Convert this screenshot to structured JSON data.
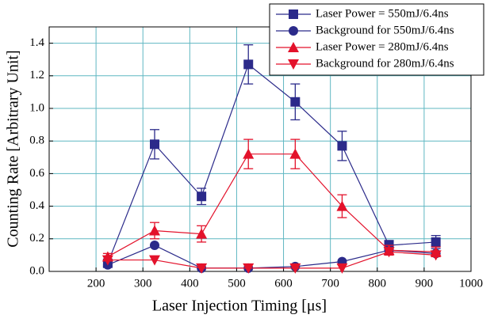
{
  "chart_data": {
    "type": "line",
    "xlabel": "Laser Injection Timing [μs]",
    "ylabel": "Counting Rate [Arbitrary Unit]",
    "x": [
      225,
      325,
      425,
      525,
      625,
      725,
      825,
      925
    ],
    "xlim": [
      100,
      1000
    ],
    "xticks": [
      200,
      300,
      400,
      500,
      600,
      700,
      800,
      900,
      1000
    ],
    "ylim": [
      0,
      1.5
    ],
    "yticks": [
      {
        "value": 0,
        "label": "0.0"
      },
      0.2,
      0.4,
      0.6,
      0.8,
      {
        "value": 1,
        "label": "1.0"
      },
      1.2,
      1.4
    ],
    "grid": true,
    "legend": "top-right",
    "series": [
      {
        "name": "Laser Power = 550mJ/6.4ns",
        "color": "#2b2a8a",
        "marker": "square",
        "values": [
          0.05,
          0.78,
          0.46,
          1.27,
          1.04,
          0.77,
          0.16,
          0.18
        ],
        "errors": [
          0.02,
          0.09,
          0.05,
          0.12,
          0.11,
          0.09,
          0.03,
          0.04
        ]
      },
      {
        "name": "Background for 550mJ/6.4ns",
        "color": "#2b2a8a",
        "marker": "circle",
        "values": [
          0.04,
          0.16,
          0.02,
          0.02,
          0.03,
          0.06,
          0.13,
          0.11
        ]
      },
      {
        "name": "Laser Power = 280mJ/6.4ns",
        "color": "#e3122b",
        "marker": "triangle-up",
        "values": [
          0.09,
          0.25,
          0.23,
          0.72,
          0.72,
          0.4,
          0.13,
          0.12
        ],
        "errors": [
          0.02,
          0.05,
          0.05,
          0.09,
          0.09,
          0.07,
          0.03,
          0.03
        ]
      },
      {
        "name": "Background for 280mJ/6.4ns",
        "color": "#e3122b",
        "marker": "triangle-down",
        "values": [
          0.07,
          0.07,
          0.02,
          0.02,
          0.02,
          0.02,
          0.12,
          0.1
        ]
      }
    ]
  }
}
